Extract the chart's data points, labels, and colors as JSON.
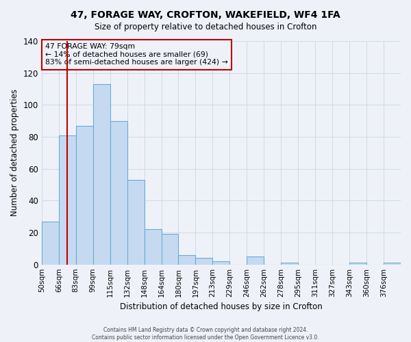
{
  "title1": "47, FORAGE WAY, CROFTON, WAKEFIELD, WF4 1FA",
  "title2": "Size of property relative to detached houses in Crofton",
  "xlabel": "Distribution of detached houses by size in Crofton",
  "ylabel": "Number of detached properties",
  "bar_labels": [
    "50sqm",
    "66sqm",
    "83sqm",
    "99sqm",
    "115sqm",
    "132sqm",
    "148sqm",
    "164sqm",
    "180sqm",
    "197sqm",
    "213sqm",
    "229sqm",
    "246sqm",
    "262sqm",
    "278sqm",
    "295sqm",
    "311sqm",
    "327sqm",
    "343sqm",
    "360sqm",
    "376sqm"
  ],
  "bar_values": [
    27,
    81,
    87,
    113,
    90,
    53,
    22,
    19,
    6,
    4,
    2,
    0,
    5,
    0,
    1,
    0,
    0,
    0,
    1,
    0,
    1
  ],
  "bar_color": "#c5daf0",
  "bar_edge_color": "#6aaad4",
  "vline_bin": 1.5,
  "vline_color": "#c00000",
  "ylim": [
    0,
    140
  ],
  "yticks": [
    0,
    20,
    40,
    60,
    80,
    100,
    120,
    140
  ],
  "grid_color": "#cdd8e8",
  "annotation_title": "47 FORAGE WAY: 79sqm",
  "annotation_line1": "← 14% of detached houses are smaller (69)",
  "annotation_line2": "83% of semi-detached houses are larger (424) →",
  "annotation_box_color": "#c00000",
  "footer1": "Contains HM Land Registry data © Crown copyright and database right 2024.",
  "footer2": "Contains public sector information licensed under the Open Government Licence v3.0.",
  "bg_color": "#eef2f8"
}
